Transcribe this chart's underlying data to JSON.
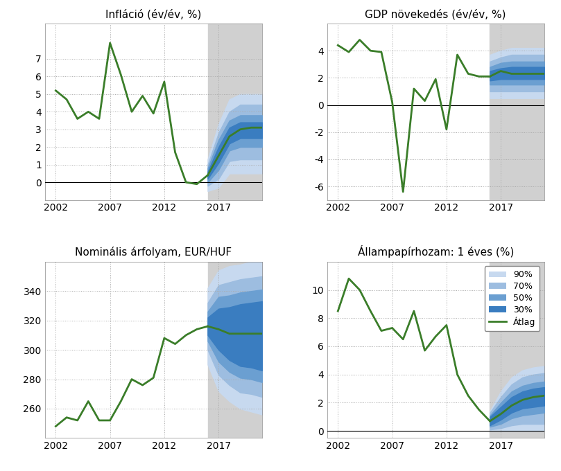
{
  "titles": [
    "Infláció (év/év, %)",
    "GDP növekedés (év/év, %)",
    "Nominális árfolyam, EUR/HUF",
    "Állampapírhozam: 1 éves (%)"
  ],
  "forecast_start": 2016,
  "forecast_end": 2021,
  "xlim": [
    2001,
    2021
  ],
  "xticks": [
    2002,
    2007,
    2012,
    2017
  ],
  "background_color": "#ffffff",
  "forecast_bg_color": "#d0d0d0",
  "grid_color": "#aaaaaa",
  "line_color": "#3a7d29",
  "fan_colors": [
    "#c7d9ef",
    "#9dbde0",
    "#6b9fd1",
    "#3a7dc0"
  ],
  "legend_labels": [
    "90%",
    "70%",
    "50%",
    "30%",
    "Átlag"
  ],
  "inflation": {
    "years": [
      2002,
      2003,
      2004,
      2005,
      2006,
      2007,
      2008,
      2009,
      2010,
      2011,
      2012,
      2013,
      2014,
      2015,
      2016
    ],
    "values": [
      5.2,
      4.7,
      3.6,
      4.0,
      3.6,
      7.9,
      6.1,
      4.0,
      4.9,
      3.9,
      5.7,
      1.7,
      0.0,
      -0.1,
      0.4
    ],
    "ylim": [
      -1,
      9
    ],
    "yticks": [
      0,
      1,
      2,
      3,
      4,
      5,
      6,
      7
    ],
    "forecast_mean": [
      2016,
      2017,
      2018,
      2019,
      2020,
      2021
    ],
    "forecast_mean_vals": [
      0.4,
      1.5,
      2.6,
      3.0,
      3.1,
      3.1
    ],
    "fan90_lo": [
      -0.5,
      -0.3,
      0.5,
      0.5,
      0.5,
      0.5
    ],
    "fan90_hi": [
      1.3,
      3.3,
      4.7,
      5.0,
      5.0,
      5.0
    ],
    "fan70_lo": [
      -0.2,
      0.2,
      1.2,
      1.3,
      1.3,
      1.3
    ],
    "fan70_hi": [
      1.0,
      2.8,
      4.0,
      4.4,
      4.4,
      4.4
    ],
    "fan50_lo": [
      0.0,
      0.7,
      1.8,
      2.0,
      2.0,
      2.0
    ],
    "fan50_hi": [
      0.8,
      2.4,
      3.5,
      3.8,
      3.8,
      3.8
    ],
    "fan30_lo": [
      0.2,
      1.1,
      2.2,
      2.5,
      2.5,
      2.5
    ],
    "fan30_hi": [
      0.6,
      2.0,
      3.1,
      3.4,
      3.4,
      3.4
    ]
  },
  "gdp": {
    "years": [
      2002,
      2003,
      2004,
      2005,
      2006,
      2007,
      2008,
      2009,
      2010,
      2011,
      2012,
      2013,
      2014,
      2015,
      2016
    ],
    "values": [
      4.4,
      3.9,
      4.8,
      4.0,
      3.9,
      0.2,
      -6.4,
      1.2,
      0.3,
      1.9,
      -1.8,
      3.7,
      2.3,
      2.1,
      2.1
    ],
    "ylim": [
      -7,
      6
    ],
    "yticks": [
      -6,
      -4,
      -2,
      0,
      2,
      4
    ],
    "forecast_mean": [
      2016,
      2017,
      2018,
      2019,
      2020,
      2021
    ],
    "forecast_mean_vals": [
      2.1,
      2.5,
      2.3,
      2.3,
      2.3,
      2.3
    ],
    "fan90_lo": [
      0.5,
      0.5,
      0.5,
      0.5,
      0.5,
      0.5
    ],
    "fan90_hi": [
      3.7,
      4.0,
      4.2,
      4.2,
      4.2,
      4.2
    ],
    "fan70_lo": [
      1.0,
      1.0,
      1.0,
      1.0,
      1.0,
      1.0
    ],
    "fan70_hi": [
      3.2,
      3.5,
      3.7,
      3.7,
      3.7,
      3.7
    ],
    "fan50_lo": [
      1.5,
      1.5,
      1.5,
      1.5,
      1.5,
      1.5
    ],
    "fan50_hi": [
      2.8,
      3.1,
      3.2,
      3.2,
      3.2,
      3.2
    ],
    "fan30_lo": [
      1.8,
      1.9,
      1.9,
      1.9,
      1.9,
      1.9
    ],
    "fan30_hi": [
      2.5,
      2.7,
      2.8,
      2.8,
      2.8,
      2.8
    ]
  },
  "eurhuf": {
    "years": [
      2002,
      2003,
      2004,
      2005,
      2006,
      2007,
      2008,
      2009,
      2010,
      2011,
      2012,
      2013,
      2014,
      2015,
      2016
    ],
    "values": [
      248,
      254,
      252,
      265,
      252,
      252,
      265,
      280,
      276,
      281,
      308,
      304,
      310,
      314,
      316
    ],
    "ylim": [
      240,
      360
    ],
    "yticks": [
      260,
      280,
      300,
      320,
      340
    ],
    "forecast_mean": [
      2016,
      2017,
      2018,
      2019,
      2020,
      2021
    ],
    "forecast_mean_vals": [
      316,
      314,
      311,
      311,
      311,
      311
    ],
    "fan90_lo": [
      290,
      272,
      265,
      260,
      258,
      256
    ],
    "fan90_hi": [
      342,
      354,
      357,
      358,
      360,
      361
    ],
    "fan70_lo": [
      300,
      283,
      276,
      271,
      270,
      268
    ],
    "fan70_hi": [
      332,
      344,
      346,
      348,
      349,
      350
    ],
    "fan50_lo": [
      306,
      292,
      285,
      281,
      280,
      278
    ],
    "fan50_hi": [
      326,
      336,
      337,
      339,
      340,
      341
    ],
    "fan30_lo": [
      310,
      300,
      293,
      289,
      288,
      286
    ],
    "fan30_hi": [
      322,
      328,
      329,
      331,
      332,
      333
    ]
  },
  "bond": {
    "years": [
      2002,
      2003,
      2004,
      2005,
      2006,
      2007,
      2008,
      2009,
      2010,
      2011,
      2012,
      2013,
      2014,
      2015,
      2016
    ],
    "values": [
      8.5,
      10.8,
      10.0,
      8.5,
      7.1,
      7.3,
      6.5,
      8.5,
      5.7,
      6.7,
      7.5,
      4.0,
      2.5,
      1.5,
      0.7
    ],
    "ylim": [
      -0.5,
      12
    ],
    "yticks": [
      0,
      2,
      4,
      6,
      8,
      10
    ],
    "forecast_mean": [
      2016,
      2017,
      2018,
      2019,
      2020,
      2021
    ],
    "forecast_mean_vals": [
      0.7,
      1.2,
      1.8,
      2.2,
      2.4,
      2.5
    ],
    "fan90_lo": [
      0.0,
      0.0,
      0.0,
      0.0,
      0.0,
      0.0
    ],
    "fan90_hi": [
      1.4,
      2.8,
      3.8,
      4.3,
      4.5,
      4.6
    ],
    "fan70_lo": [
      0.1,
      0.2,
      0.4,
      0.5,
      0.5,
      0.5
    ],
    "fan70_hi": [
      1.3,
      2.4,
      3.3,
      3.8,
      4.0,
      4.1
    ],
    "fan50_lo": [
      0.3,
      0.5,
      0.9,
      1.1,
      1.2,
      1.3
    ],
    "fan50_hi": [
      1.1,
      2.0,
      2.8,
      3.2,
      3.4,
      3.5
    ],
    "fan30_lo": [
      0.4,
      0.8,
      1.3,
      1.6,
      1.7,
      1.8
    ],
    "fan30_hi": [
      1.0,
      1.7,
      2.4,
      2.8,
      3.0,
      3.1
    ]
  }
}
